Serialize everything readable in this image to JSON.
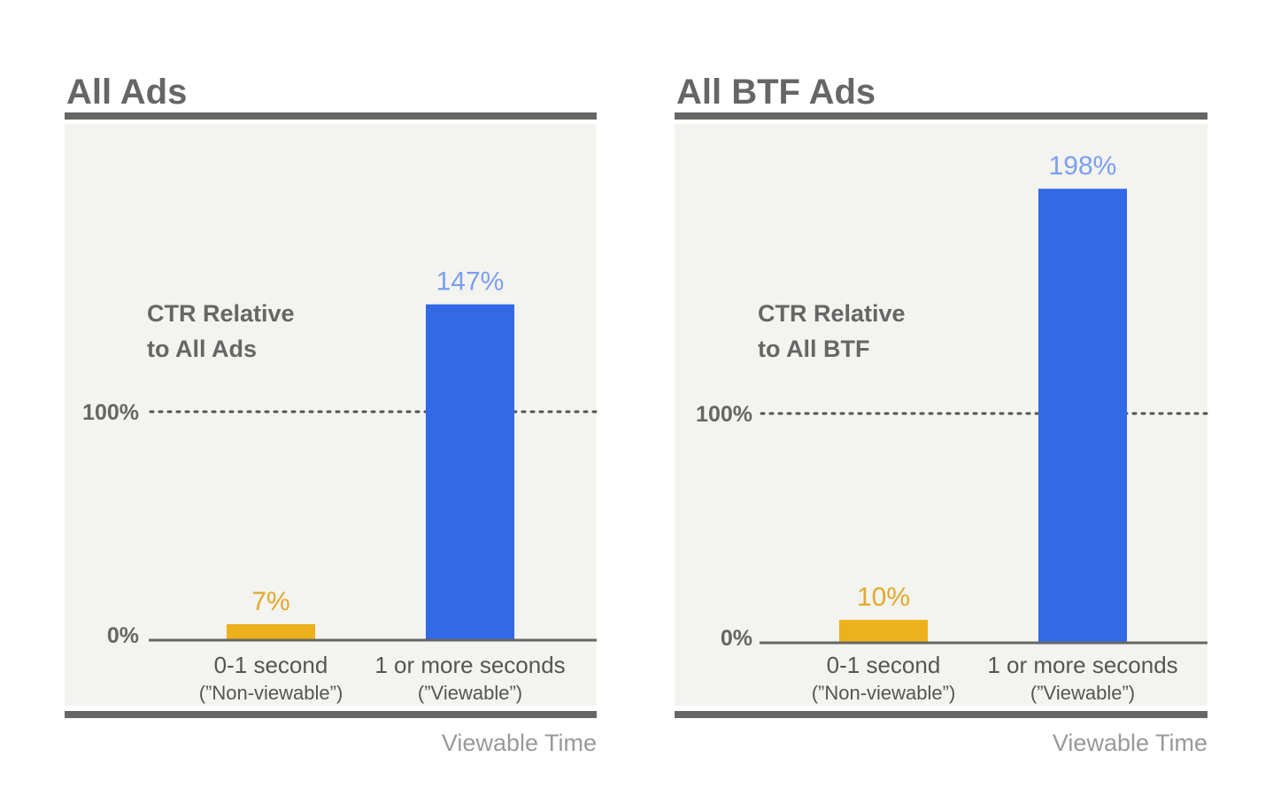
{
  "colors": {
    "panel_background": "#f3f3ef",
    "rule": "#666666",
    "axis": "#666666",
    "reference_line": "#555555",
    "non_viewable": "#ecb11b",
    "viewable": "#3269e6",
    "non_viewable_label": "#e3a92a",
    "viewable_label": "#7b9ff0"
  },
  "chart_data": [
    {
      "type": "bar",
      "title": "All Ads",
      "ylabel_lines": [
        "CTR Relative",
        "to All Ads"
      ],
      "xlabel": "Viewable Time",
      "categories": [
        {
          "label": "0-1 second",
          "sublabel": "(”Non-viewable”)"
        },
        {
          "label": "1 or more seconds",
          "sublabel": "(”Viewable”)"
        }
      ],
      "values": [
        7,
        147
      ],
      "value_labels": [
        "7%",
        "147%"
      ],
      "ylim": [
        0,
        180
      ],
      "ticks": [
        {
          "value": 0,
          "label": "0%"
        },
        {
          "value": 100,
          "label": "100%"
        }
      ],
      "reference_line": 100
    },
    {
      "type": "bar",
      "title": "All BTF Ads",
      "ylabel_lines": [
        "CTR Relative",
        "to All BTF"
      ],
      "xlabel": "Viewable Time",
      "categories": [
        {
          "label": "0-1 second",
          "sublabel": "(”Non-viewable”)"
        },
        {
          "label": "1 or more seconds",
          "sublabel": "(”Viewable”)"
        }
      ],
      "values": [
        10,
        198
      ],
      "value_labels": [
        "10%",
        "198%"
      ],
      "ylim": [
        0,
        220
      ],
      "ticks": [
        {
          "value": 0,
          "label": "0%"
        },
        {
          "value": 100,
          "label": "100%"
        }
      ],
      "reference_line": 100
    }
  ]
}
